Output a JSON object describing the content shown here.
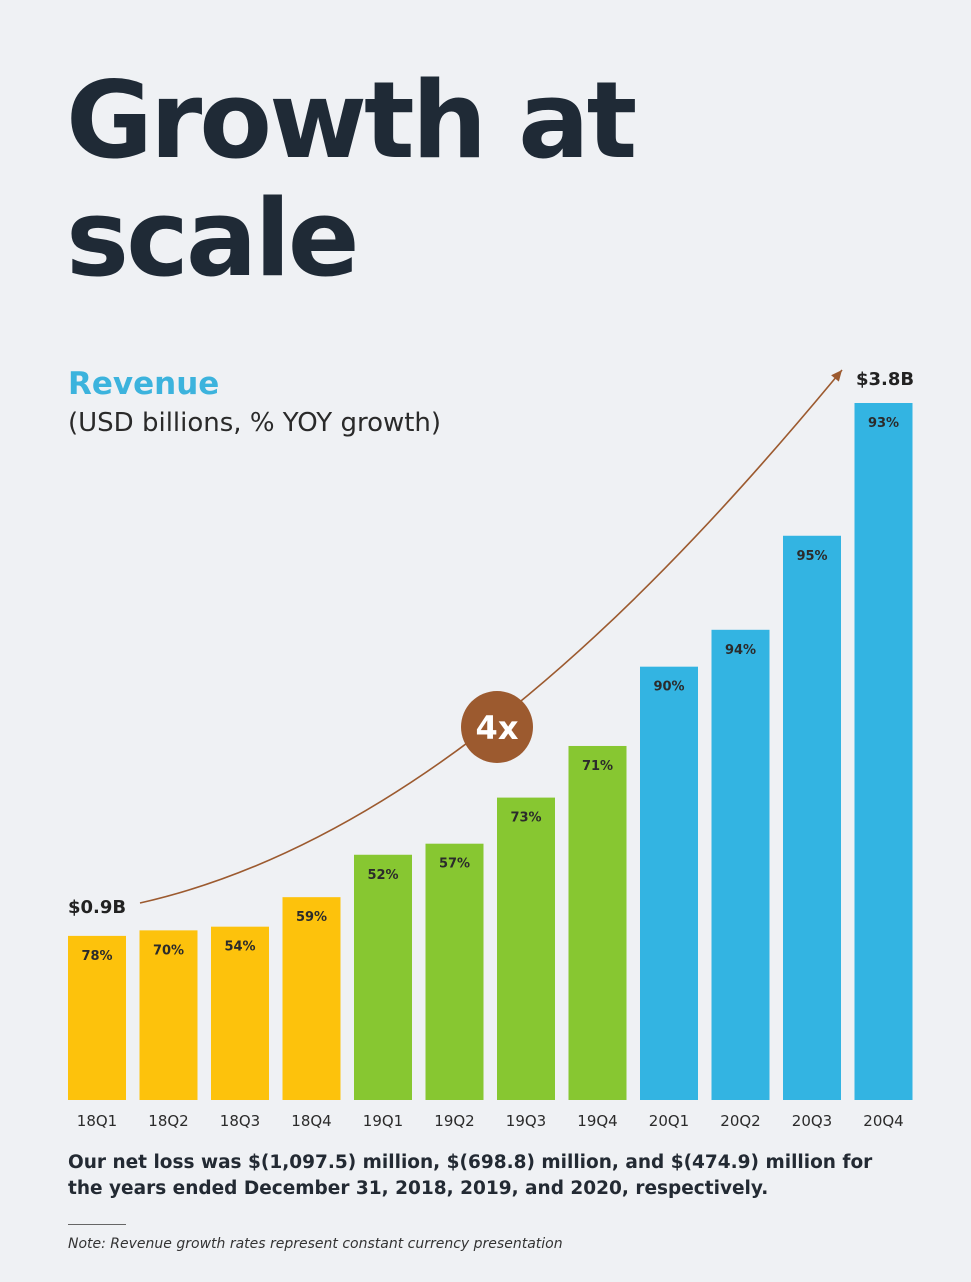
{
  "headline": {
    "line1": "Growth at",
    "line2": "scale"
  },
  "chart_data": {
    "type": "bar",
    "title": "Revenue",
    "subtitle": "(USD billions, % YOY growth)",
    "unit": "USD billions",
    "categories": [
      "18Q1",
      "18Q2",
      "18Q3",
      "18Q4",
      "19Q1",
      "19Q2",
      "19Q3",
      "19Q4",
      "20Q1",
      "20Q2",
      "20Q3",
      "20Q4"
    ],
    "values": [
      0.89,
      0.92,
      0.94,
      1.1,
      1.33,
      1.39,
      1.64,
      1.92,
      2.35,
      2.55,
      3.06,
      3.78
    ],
    "growth_labels": [
      "78%",
      "70%",
      "54%",
      "59%",
      "52%",
      "57%",
      "73%",
      "71%",
      "90%",
      "94%",
      "95%",
      "93%"
    ],
    "year_colors": {
      "2018": "#fdc20c",
      "2019": "#87c731",
      "2020": "#33b4e2"
    },
    "bar_years": [
      "2018",
      "2018",
      "2018",
      "2018",
      "2019",
      "2019",
      "2019",
      "2019",
      "2020",
      "2020",
      "2020",
      "2020"
    ],
    "start_label": "$0.9B",
    "end_label": "$3.8B",
    "multiplier_label": "4x",
    "arrow_color": "#9c5a2f",
    "ylim": [
      0,
      3.9
    ]
  },
  "footnote": "Our net loss was $(1,097.5) million, $(698.8) million, and $(474.9) million for the years ended December 31, 2018, 2019, and 2020, respectively.",
  "note": "Note: Revenue growth rates represent constant currency presentation"
}
